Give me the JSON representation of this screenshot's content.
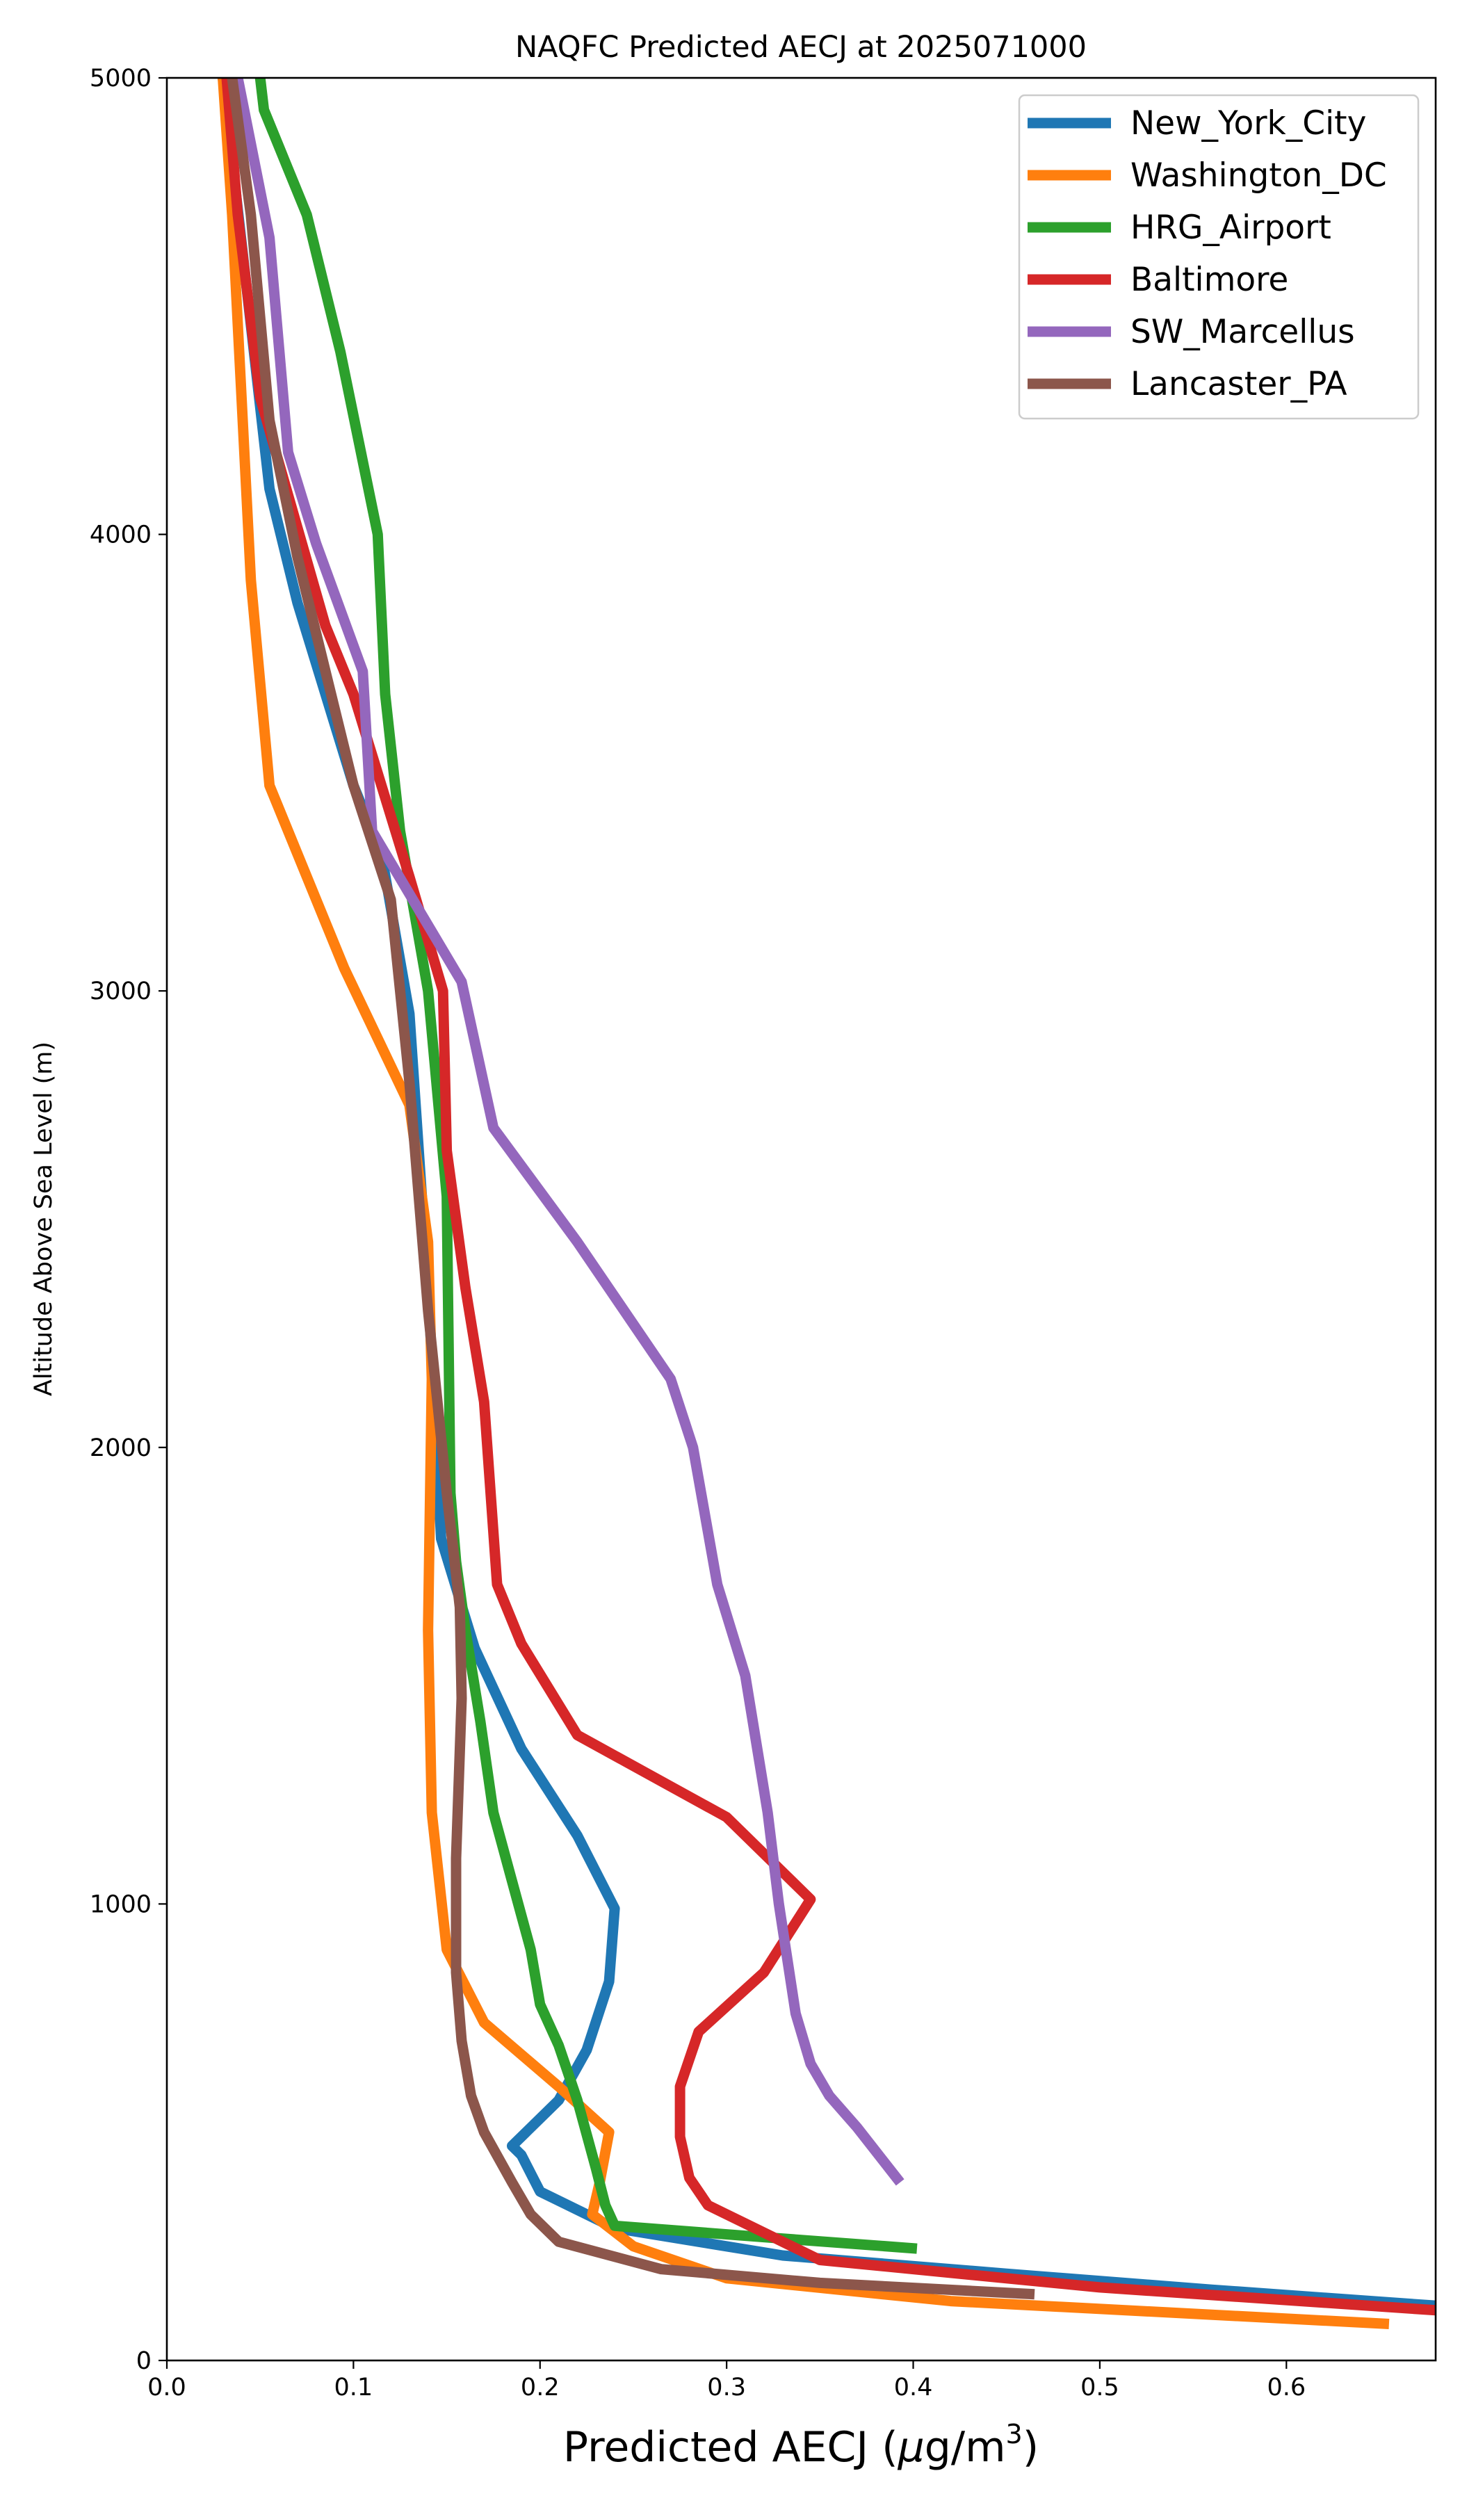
{
  "chart_data": {
    "type": "line",
    "title": "NAQFC Predicted AECJ at 2025071000",
    "xlabel_main": "Predicted AECJ (",
    "xlabel_mu": "μ",
    "xlabel_unit": "g/m",
    "xlabel_sup": "3",
    "xlabel_close": ")",
    "ylabel": "Altitude Above Sea Level (m)",
    "xlim": [
      0.0,
      0.68
    ],
    "ylim": [
      0,
      5000
    ],
    "xticks": [
      0.0,
      0.1,
      0.2,
      0.3,
      0.4,
      0.5,
      0.6
    ],
    "xtick_labels": [
      "0.0",
      "0.1",
      "0.2",
      "0.3",
      "0.4",
      "0.5",
      "0.6"
    ],
    "yticks": [
      0,
      1000,
      2000,
      3000,
      4000,
      5000
    ],
    "ytick_labels": [
      "0",
      "1000",
      "2000",
      "3000",
      "4000",
      "5000"
    ],
    "grid": false,
    "legend_position": "top-right",
    "series": [
      {
        "name": "New_York_City",
        "color": "#1f77b4",
        "points": [
          [
            0.68,
            120
          ],
          [
            0.56,
            155
          ],
          [
            0.45,
            190
          ],
          [
            0.33,
            230
          ],
          [
            0.24,
            290
          ],
          [
            0.2,
            370
          ],
          [
            0.19,
            450
          ],
          [
            0.185,
            470
          ],
          [
            0.21,
            570
          ],
          [
            0.225,
            680
          ],
          [
            0.237,
            830
          ],
          [
            0.24,
            990
          ],
          [
            0.22,
            1150
          ],
          [
            0.19,
            1340
          ],
          [
            0.165,
            1560
          ],
          [
            0.147,
            1800
          ],
          [
            0.14,
            2350
          ],
          [
            0.13,
            2950
          ],
          [
            0.115,
            3300
          ],
          [
            0.1,
            3450
          ],
          [
            0.07,
            3850
          ],
          [
            0.055,
            4100
          ],
          [
            0.03,
            5000
          ]
        ]
      },
      {
        "name": "Washington_DC",
        "color": "#ff7f0e",
        "points": [
          [
            0.655,
            80
          ],
          [
            0.42,
            130
          ],
          [
            0.3,
            180
          ],
          [
            0.25,
            250
          ],
          [
            0.228,
            320
          ],
          [
            0.232,
            390
          ],
          [
            0.237,
            500
          ],
          [
            0.21,
            600
          ],
          [
            0.17,
            740
          ],
          [
            0.15,
            900
          ],
          [
            0.142,
            1200
          ],
          [
            0.14,
            1600
          ],
          [
            0.142,
            2150
          ],
          [
            0.14,
            2450
          ],
          [
            0.13,
            2750
          ],
          [
            0.095,
            3050
          ],
          [
            0.055,
            3450
          ],
          [
            0.045,
            3900
          ],
          [
            0.04,
            4300
          ],
          [
            0.035,
            4700
          ],
          [
            0.03,
            5000
          ]
        ]
      },
      {
        "name": "HRG_Airport",
        "color": "#2ca02c",
        "points": [
          [
            0.402,
            245
          ],
          [
            0.32,
            270
          ],
          [
            0.24,
            295
          ],
          [
            0.235,
            340
          ],
          [
            0.23,
            420
          ],
          [
            0.22,
            570
          ],
          [
            0.21,
            690
          ],
          [
            0.2,
            780
          ],
          [
            0.195,
            900
          ],
          [
            0.185,
            1050
          ],
          [
            0.175,
            1200
          ],
          [
            0.168,
            1400
          ],
          [
            0.16,
            1600
          ],
          [
            0.155,
            1750
          ],
          [
            0.152,
            1900
          ],
          [
            0.15,
            2550
          ],
          [
            0.14,
            3000
          ],
          [
            0.125,
            3350
          ],
          [
            0.117,
            3650
          ],
          [
            0.113,
            4000
          ],
          [
            0.093,
            4400
          ],
          [
            0.075,
            4700
          ],
          [
            0.052,
            4930
          ],
          [
            0.05,
            5000
          ]
        ]
      },
      {
        "name": "Baltimore",
        "color": "#d62728",
        "points": [
          [
            0.68,
            110
          ],
          [
            0.5,
            160
          ],
          [
            0.35,
            220
          ],
          [
            0.31,
            300
          ],
          [
            0.29,
            340
          ],
          [
            0.28,
            400
          ],
          [
            0.275,
            490
          ],
          [
            0.275,
            600
          ],
          [
            0.285,
            720
          ],
          [
            0.32,
            850
          ],
          [
            0.345,
            1010
          ],
          [
            0.3,
            1190
          ],
          [
            0.22,
            1370
          ],
          [
            0.19,
            1570
          ],
          [
            0.177,
            1700
          ],
          [
            0.17,
            2100
          ],
          [
            0.16,
            2350
          ],
          [
            0.15,
            2650
          ],
          [
            0.148,
            3000
          ],
          [
            0.13,
            3250
          ],
          [
            0.1,
            3650
          ],
          [
            0.085,
            3800
          ],
          [
            0.05,
            4300
          ],
          [
            0.038,
            4700
          ],
          [
            0.032,
            5000
          ]
        ]
      },
      {
        "name": "SW_Marcellus",
        "color": "#9467bd",
        "points": [
          [
            0.393,
            390
          ],
          [
            0.37,
            510
          ],
          [
            0.355,
            580
          ],
          [
            0.345,
            650
          ],
          [
            0.337,
            760
          ],
          [
            0.328,
            1000
          ],
          [
            0.322,
            1200
          ],
          [
            0.31,
            1500
          ],
          [
            0.295,
            1700
          ],
          [
            0.282,
            2000
          ],
          [
            0.27,
            2150
          ],
          [
            0.22,
            2450
          ],
          [
            0.175,
            2700
          ],
          [
            0.158,
            3020
          ],
          [
            0.11,
            3350
          ],
          [
            0.105,
            3700
          ],
          [
            0.08,
            3980
          ],
          [
            0.065,
            4180
          ],
          [
            0.055,
            4650
          ],
          [
            0.038,
            5000
          ]
        ]
      },
      {
        "name": "Lancaster_PA",
        "color": "#8c564b",
        "points": [
          [
            0.465,
            145
          ],
          [
            0.35,
            170
          ],
          [
            0.265,
            200
          ],
          [
            0.21,
            260
          ],
          [
            0.195,
            320
          ],
          [
            0.185,
            390
          ],
          [
            0.17,
            500
          ],
          [
            0.163,
            580
          ],
          [
            0.158,
            700
          ],
          [
            0.155,
            850
          ],
          [
            0.155,
            1100
          ],
          [
            0.158,
            1450
          ],
          [
            0.157,
            1650
          ],
          [
            0.15,
            1900
          ],
          [
            0.14,
            2300
          ],
          [
            0.13,
            2800
          ],
          [
            0.12,
            3200
          ],
          [
            0.1,
            3450
          ],
          [
            0.088,
            3650
          ],
          [
            0.07,
            3950
          ],
          [
            0.055,
            4250
          ],
          [
            0.045,
            4700
          ],
          [
            0.035,
            5000
          ]
        ]
      }
    ]
  }
}
